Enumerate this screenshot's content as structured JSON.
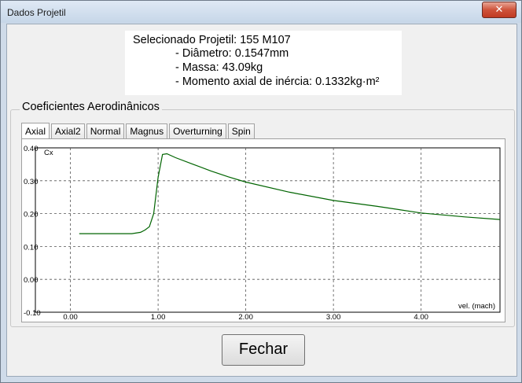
{
  "window": {
    "title": "Dados Projetil",
    "close_glyph": "✕"
  },
  "info": {
    "line1": "Selecionado Projetil: 155 M107",
    "line2": "- Diâmetro: 0.1547mm",
    "line3": "- Massa: 43.09kg",
    "line4": "- Momento axial de inércia: 0.1332kg·m²"
  },
  "group": {
    "label": "Coeficientes Aerodinânicos"
  },
  "tabs": [
    {
      "label": "Axial",
      "active": true
    },
    {
      "label": "Axial2",
      "active": false
    },
    {
      "label": "Normal",
      "active": false
    },
    {
      "label": "Magnus",
      "active": false
    },
    {
      "label": "Overturning",
      "active": false
    },
    {
      "label": "Spin",
      "active": false
    }
  ],
  "footer": {
    "close_label": "Fechar"
  },
  "chart_data": {
    "type": "line",
    "ylabel": "Cx",
    "xlabel": "vel. (mach)",
    "xlim": [
      -0.4,
      4.9
    ],
    "ylim": [
      -0.1,
      0.4
    ],
    "x_ticks": [
      "0.00",
      "1.00",
      "2.00",
      "3.00",
      "4.00"
    ],
    "x_tick_values": [
      0,
      1,
      2,
      3,
      4
    ],
    "y_ticks": [
      "0.40",
      "0.30",
      "0.20",
      "0.10",
      "0.00",
      "-0.10"
    ],
    "y_tick_values": [
      0.4,
      0.3,
      0.2,
      0.1,
      0.0,
      -0.1
    ],
    "grid": true,
    "line_color": "#006400",
    "series": [
      {
        "x": [
          0.1,
          0.5,
          0.7,
          0.8,
          0.85,
          0.9,
          0.95,
          1.0,
          1.05,
          1.1,
          1.2,
          1.4,
          1.6,
          1.8,
          2.0,
          2.5,
          3.0,
          3.5,
          4.0,
          4.5,
          4.9
        ],
        "y": [
          0.139,
          0.139,
          0.139,
          0.143,
          0.15,
          0.16,
          0.2,
          0.31,
          0.38,
          0.382,
          0.37,
          0.35,
          0.33,
          0.312,
          0.296,
          0.265,
          0.24,
          0.222,
          0.202,
          0.19,
          0.182
        ]
      }
    ]
  }
}
